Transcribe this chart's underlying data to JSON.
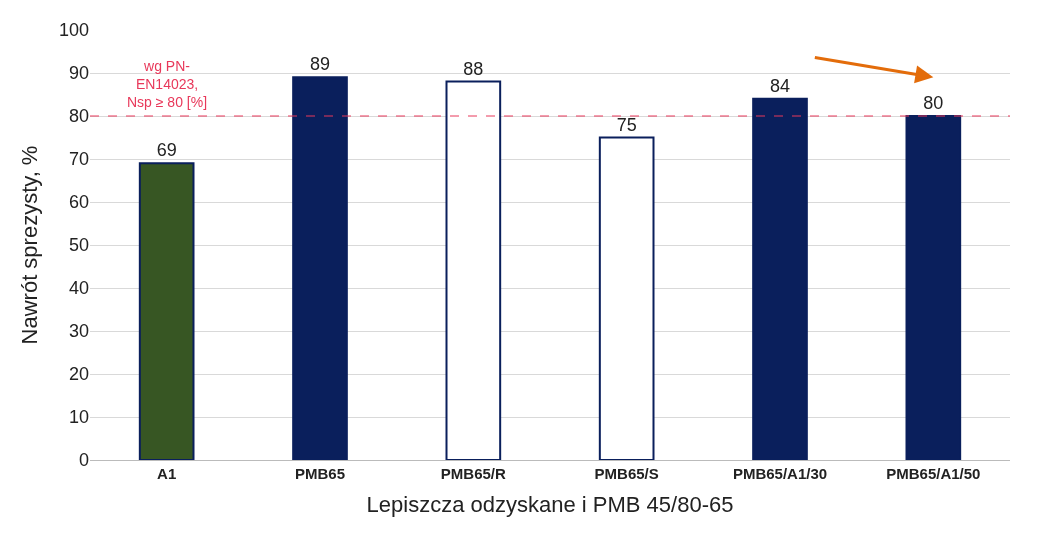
{
  "chart_data": {
    "type": "bar",
    "categories": [
      "A1",
      "PMB65",
      "PMB65/R",
      "PMB65/S",
      "PMB65/A1/30",
      "PMB65/A1/50"
    ],
    "values": [
      69,
      89,
      88,
      75,
      84,
      80
    ],
    "colors": [
      "#375623",
      "#0a1f5c",
      "#ffffff",
      "#ffffff",
      "#0a1f5c",
      "#0a1f5c"
    ],
    "xlabel": "Lepiszcza odzyskane i PMB 45/80-65",
    "ylabel": "Nawrót sprezysty, %",
    "ylim": [
      0,
      100
    ],
    "yticks": [
      0,
      10,
      20,
      30,
      40,
      50,
      60,
      70,
      80,
      90,
      100
    ],
    "grid": "y",
    "data_labels": true,
    "ref_lines": [
      {
        "axis": "y",
        "value": 80,
        "label": "wg PN-\nEN14023,\nNsp ≥ 80 [%]",
        "color": "#e8385a",
        "line_style": "dashed"
      }
    ]
  }
}
